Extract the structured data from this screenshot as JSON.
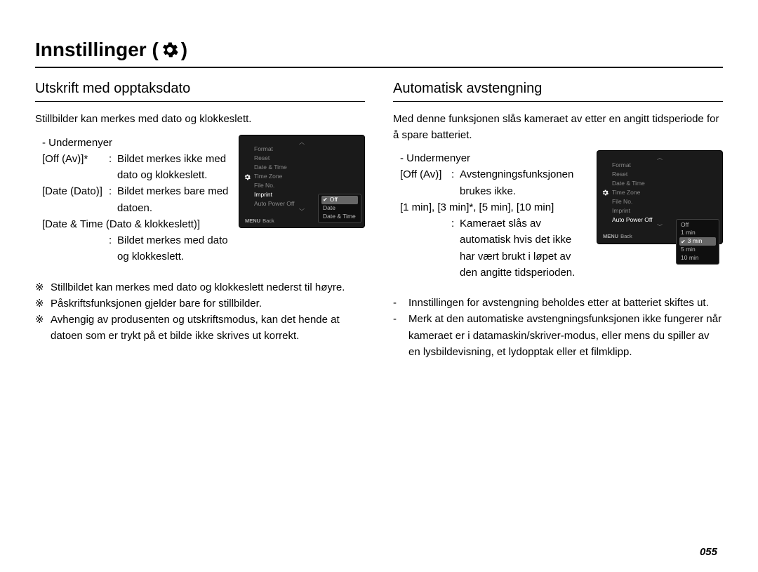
{
  "title_prefix": "Innstillinger (",
  "title_suffix": " )",
  "page_number": "055",
  "left": {
    "heading": "Utskrift med opptaksdato",
    "intro": "Stillbilder kan merkes med dato og klokkeslett.",
    "submenu_label": "- Undermenyer",
    "opt1_label": "[Off (Av)]*",
    "opt1_desc": "Bildet merkes ikke med dato og klokkeslett.",
    "opt2_label": "[Date (Dato)]",
    "opt2_desc": "Bildet merkes bare med datoen.",
    "opt3_label": "[Date & Time (Dato & klokkeslett)]",
    "opt3_desc": "Bildet merkes med dato og klokkeslett.",
    "note1": "Stillbildet kan merkes med dato og klokkeslett nederst til høyre.",
    "note2": "Påskriftsfunksjonen gjelder bare for stillbilder.",
    "note3": "Avhengig av produsenten og utskriftsmodus, kan det hende at datoen som er trykt på et bilde ikke skrives ut korrekt.",
    "lcd": {
      "items": [
        "Format",
        "Reset",
        "Date & Time",
        "Time Zone",
        "File No.",
        "Imprint",
        "Auto Power Off"
      ],
      "active_index": 5,
      "time": "",
      "popup": [
        "Off",
        "Date",
        "Date & Time"
      ],
      "popup_sel": 0,
      "back": "Back",
      "set": "Set"
    }
  },
  "right": {
    "heading": "Automatisk avstengning",
    "intro": "Med denne funksjonen slås kameraet av etter en angitt tidsperiode for å spare batteriet.",
    "submenu_label": "- Undermenyer",
    "opt1_label": "[Off (Av)]",
    "opt1_desc": "Avstengningsfunksjonen brukes ikke.",
    "opt2_label": "[1 min], [3 min]*, [5 min], [10 min]",
    "opt2_desc": "Kameraet slås av automatisk hvis det ikke har vært brukt i løpet av den angitte tidsperioden.",
    "note1": "Innstillingen for avstengning beholdes etter at batteriet skiftes ut.",
    "note2": "Merk at den automatiske avstengningsfunksjonen ikke fungerer når kameraet er i datamaskin/skriver-modus, eller mens du spiller av en lysbildevisning, et lydopptak eller et filmklipp.",
    "lcd": {
      "items": [
        "Format",
        "Reset",
        "Date & Time",
        "Time Zone",
        "File No.",
        "Imprint",
        "Auto Power Off"
      ],
      "active_index": 6,
      "popup": [
        "Off",
        "1 min",
        "3 min",
        "5 min",
        "10 min"
      ],
      "popup_sel": 2,
      "back": "Back",
      "set": "Set"
    }
  }
}
